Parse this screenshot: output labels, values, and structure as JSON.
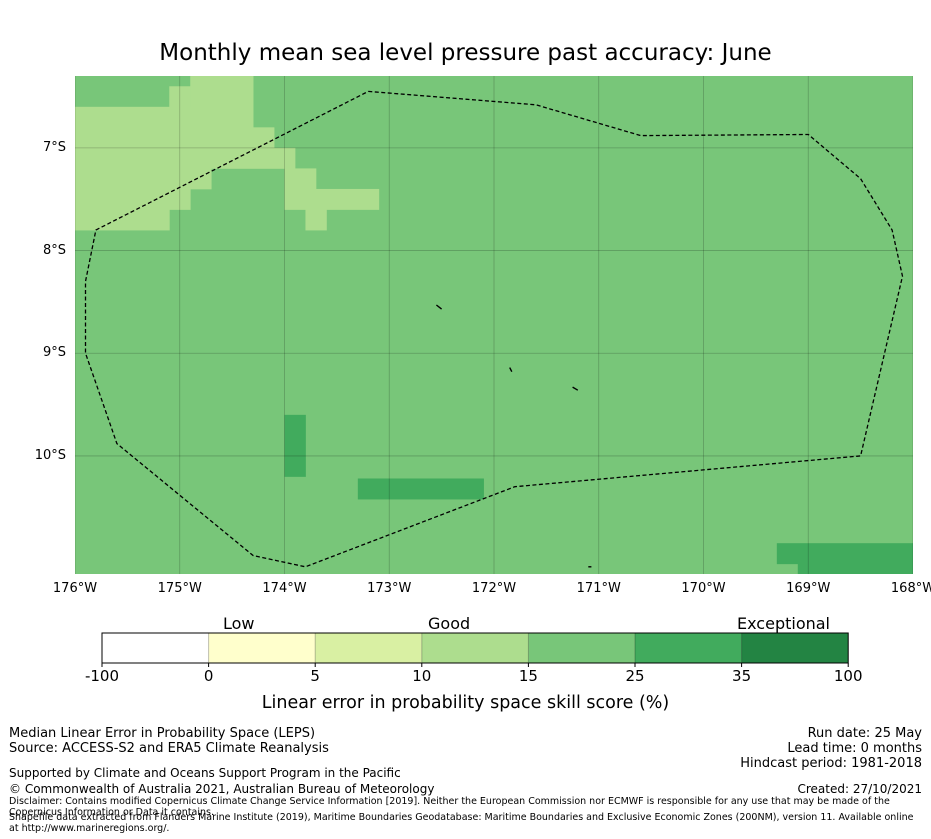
{
  "title": "Monthly mean sea level pressure past accuracy: June",
  "map": {
    "lon_range": [
      -176,
      -168
    ],
    "lat_range": [
      -11.15,
      -6.3
    ],
    "lon_ticks": [
      {
        "value": -176,
        "label": "176°W"
      },
      {
        "value": -175,
        "label": "175°W"
      },
      {
        "value": -174,
        "label": "174°W"
      },
      {
        "value": -173,
        "label": "173°W"
      },
      {
        "value": -172,
        "label": "172°W"
      },
      {
        "value": -171,
        "label": "171°W"
      },
      {
        "value": -170,
        "label": "170°W"
      },
      {
        "value": -169,
        "label": "169°W"
      },
      {
        "value": -168,
        "label": "168°W"
      }
    ],
    "lat_ticks": [
      {
        "value": -7,
        "label": "7°S"
      },
      {
        "value": -8,
        "label": "8°S"
      },
      {
        "value": -9,
        "label": "9°S"
      },
      {
        "value": -10,
        "label": "10°S"
      }
    ],
    "background_color": "#78c679",
    "gridlines": true,
    "eez_boundary": [
      [
        -173.2,
        -6.45
      ],
      [
        -171.6,
        -6.58
      ],
      [
        -170.6,
        -6.88
      ],
      [
        -169.0,
        -6.87
      ],
      [
        -168.5,
        -7.3
      ],
      [
        -168.2,
        -7.8
      ],
      [
        -168.1,
        -8.25
      ],
      [
        -168.5,
        -10.0
      ],
      [
        -171.8,
        -10.3
      ],
      [
        -173.8,
        -11.08
      ],
      [
        -174.3,
        -10.97
      ],
      [
        -175.6,
        -9.88
      ],
      [
        -175.9,
        -9.0
      ],
      [
        -175.9,
        -8.3
      ],
      [
        -175.8,
        -7.8
      ],
      [
        -173.2,
        -6.45
      ]
    ],
    "islands": [
      [
        [
          -172.55,
          -8.53
        ],
        [
          -172.5,
          -8.57
        ]
      ],
      [
        [
          -171.85,
          -9.14
        ],
        [
          -171.83,
          -9.18
        ]
      ],
      [
        [
          -171.25,
          -9.33
        ],
        [
          -171.2,
          -9.36
        ]
      ],
      [
        [
          -171.1,
          -11.08
        ],
        [
          -171.07,
          -11.08
        ]
      ]
    ],
    "cells": [
      {
        "lon": [
          -176.0,
          -175.1
        ],
        "lat": [
          -6.6,
          -6.3
        ],
        "category": "15-25"
      },
      {
        "lon": [
          -175.1,
          -174.9
        ],
        "lat": [
          -6.6,
          -6.4
        ],
        "category": "10-15"
      },
      {
        "lon": [
          -174.9,
          -174.3
        ],
        "lat": [
          -6.6,
          -6.3
        ],
        "category": "10-15"
      },
      {
        "lon": [
          -176.0,
          -174.3
        ],
        "lat": [
          -6.8,
          -6.6
        ],
        "category": "10-15"
      },
      {
        "lon": [
          -176.0,
          -174.1
        ],
        "lat": [
          -7.0,
          -6.8
        ],
        "category": "10-15"
      },
      {
        "lon": [
          -176.0,
          -173.9
        ],
        "lat": [
          -7.2,
          -7.0
        ],
        "category": "10-15"
      },
      {
        "lon": [
          -176.0,
          -174.7
        ],
        "lat": [
          -7.4,
          -7.2
        ],
        "category": "10-15"
      },
      {
        "lon": [
          -176.0,
          -174.9
        ],
        "lat": [
          -7.6,
          -7.4
        ],
        "category": "10-15"
      },
      {
        "lon": [
          -176.0,
          -175.1
        ],
        "lat": [
          -7.8,
          -7.6
        ],
        "category": "10-15"
      },
      {
        "lon": [
          -174.0,
          -173.7
        ],
        "lat": [
          -7.4,
          -7.2
        ],
        "category": "10-15"
      },
      {
        "lon": [
          -174.0,
          -173.1
        ],
        "lat": [
          -7.6,
          -7.4
        ],
        "category": "10-15"
      },
      {
        "lon": [
          -173.8,
          -173.6
        ],
        "lat": [
          -7.8,
          -7.6
        ],
        "category": "10-15"
      },
      {
        "lon": [
          -174.0,
          -173.8
        ],
        "lat": [
          -10.2,
          -9.6
        ],
        "category": "25-35"
      },
      {
        "lon": [
          -173.3,
          -172.1
        ],
        "lat": [
          -10.42,
          -10.22
        ],
        "category": "25-35"
      },
      {
        "lon": [
          -169.3,
          -168.0
        ],
        "lat": [
          -11.05,
          -10.85
        ],
        "category": "25-35"
      },
      {
        "lon": [
          -169.1,
          -168.0
        ],
        "lat": [
          -11.15,
          -11.05
        ],
        "category": "25-35"
      }
    ]
  },
  "colorbar": {
    "labels": {
      "low": "Low",
      "good": "Good",
      "exceptional": "Exceptional"
    },
    "ticks": [
      "-100",
      "0",
      "5",
      "10",
      "15",
      "25",
      "35",
      "100"
    ],
    "colors": [
      "#ffffff",
      "#ffffcc",
      "#d9f0a3",
      "#addd8e",
      "#78c679",
      "#41ab5d",
      "#238443"
    ],
    "category_colors": {
      "10-15": "#addd8e",
      "15-25": "#78c679",
      "25-35": "#41ab5d"
    },
    "title": "Linear error in probability space skill score (%)"
  },
  "footer": {
    "left": [
      "Median Linear Error in Probability Space (LEPS)",
      "Source: ACCESS-S2 and ERA5 Climate Reanalysis"
    ],
    "support": "Supported by Climate and Oceans Support Program in the Pacific",
    "copyright": "© Commonwealth of Australia 2021, Australian Bureau of Meteorology",
    "disclaimer": "Disclaimer: Contains modified Copernicus Climate Change Service Information [2019]. Neither the European Commission nor ECMWF is responsible for any use that may be made of the Copernicus Information or Data it contains.",
    "shapefile": "Shapefile data extracted from Flanders Marine Institute (2019), Maritime Boundaries Geodatabase: Maritime Boundaries and Exclusive Economic Zones (200NM), version 11. Available online at http://www.marineregions.org/.",
    "right": [
      "Run date: 25 May",
      "Lead time: 0 months",
      "Hindcast period: 1981-2018"
    ],
    "created": "Created: 27/10/2021"
  }
}
